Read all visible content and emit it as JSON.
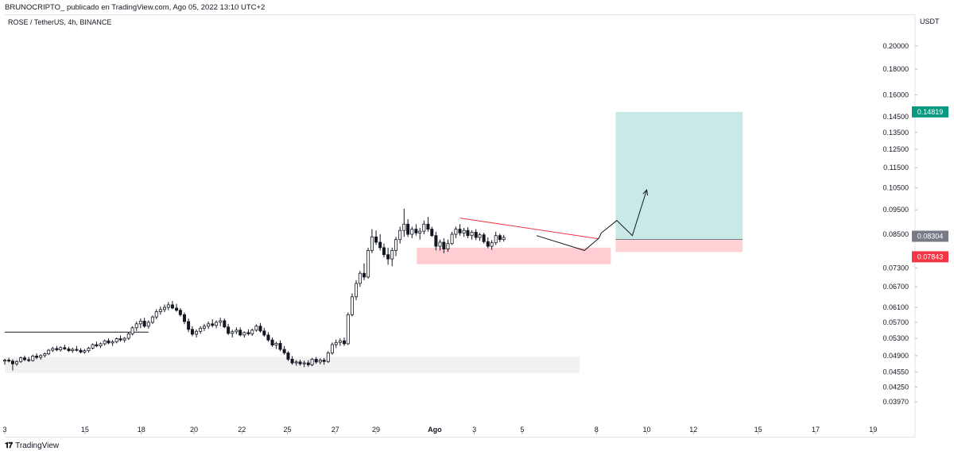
{
  "header": {
    "publisher_line": "BRUNOCRIPTO_ publicado en TradingView.com, Ago 05, 2022 13:10 UTC+2"
  },
  "chart_title": "ROSE / TetherUS, 4h, BINANCE",
  "currency": "USDT",
  "footer": {
    "brand": "TradingView",
    "logo": "tv-logo-icon"
  },
  "colors": {
    "up": "#131722",
    "down": "#131722",
    "up_fill": "#ffffff",
    "target_zone": "#b2dfdb",
    "stop_zone": "#ffcdd2",
    "demand_zone": "#f0f0f0",
    "price_tag": "#787b86",
    "target_tag": "#089981",
    "stop_tag": "#f23645",
    "trendline": "#f23645"
  },
  "chart_data": {
    "type": "candlestick",
    "y_axis": {
      "ticks": [
        "0.20000",
        "0.18000",
        "0.16000",
        "0.14500",
        "0.13500",
        "0.12500",
        "0.11500",
        "0.10500",
        "0.09500",
        "0.08500",
        "0.07300",
        "0.06700",
        "0.06100",
        "0.05700",
        "0.05300",
        "0.04900",
        "0.04550",
        "0.04250",
        "0.03970"
      ],
      "scale": "log",
      "range": [
        0.0375,
        0.23
      ]
    },
    "x_axis": {
      "ticks": [
        "3",
        "15",
        "18",
        "20",
        "22",
        "25",
        "27",
        "29",
        "Ago",
        "3",
        "5",
        "8",
        "10",
        "12",
        "15",
        "17",
        "19"
      ],
      "range_day_index": [
        0,
        38
      ]
    },
    "price_tags": [
      {
        "name": "target",
        "value": "0.14819",
        "price": 0.14819
      },
      {
        "name": "current",
        "value": "0.08304",
        "price": 0.08304
      },
      {
        "name": "stop",
        "value": "0.07843",
        "price": 0.07843
      }
    ],
    "candles": [
      [
        0.0,
        0.0478,
        0.0483,
        0.047,
        0.048
      ],
      [
        0.17,
        0.048,
        0.0485,
        0.0475,
        0.0478
      ],
      [
        0.33,
        0.0478,
        0.0482,
        0.0458,
        0.0472
      ],
      [
        0.5,
        0.0472,
        0.048,
        0.0468,
        0.0477
      ],
      [
        0.67,
        0.0477,
        0.0488,
        0.0474,
        0.0485
      ],
      [
        0.83,
        0.0485,
        0.049,
        0.0478,
        0.0481
      ],
      [
        1.0,
        0.0481,
        0.0487,
        0.0476,
        0.0479
      ],
      [
        1.17,
        0.0479,
        0.0492,
        0.0477,
        0.0489
      ],
      [
        1.33,
        0.0489,
        0.0495,
        0.0482,
        0.0486
      ],
      [
        1.5,
        0.0486,
        0.0493,
        0.0481,
        0.049
      ],
      [
        1.67,
        0.049,
        0.0497,
        0.0486,
        0.0494
      ],
      [
        1.83,
        0.0494,
        0.0505,
        0.0491,
        0.0502
      ],
      [
        2.0,
        0.0502,
        0.051,
        0.0498,
        0.0506
      ],
      [
        2.17,
        0.0506,
        0.0512,
        0.05,
        0.0503
      ],
      [
        2.33,
        0.0503,
        0.0511,
        0.0499,
        0.0508
      ],
      [
        2.5,
        0.0508,
        0.0515,
        0.0503,
        0.0505
      ],
      [
        2.67,
        0.0505,
        0.051,
        0.0498,
        0.0501
      ],
      [
        2.83,
        0.0501,
        0.0508,
        0.0496,
        0.0504
      ],
      [
        3.0,
        0.0504,
        0.0512,
        0.0499,
        0.0502
      ],
      [
        3.17,
        0.0502,
        0.0507,
        0.0495,
        0.0498
      ],
      [
        3.33,
        0.0498,
        0.0505,
        0.0494,
        0.0501
      ],
      [
        3.5,
        0.0501,
        0.051,
        0.0497,
        0.0507
      ],
      [
        3.67,
        0.0507,
        0.0518,
        0.0504,
        0.0515
      ],
      [
        3.83,
        0.0515,
        0.0522,
        0.0509,
        0.0512
      ],
      [
        4.0,
        0.0512,
        0.052,
        0.0507,
        0.0517
      ],
      [
        4.17,
        0.0517,
        0.0527,
        0.0513,
        0.0524
      ],
      [
        4.33,
        0.0524,
        0.053,
        0.0516,
        0.0519
      ],
      [
        4.5,
        0.0519,
        0.0526,
        0.0512,
        0.0522
      ],
      [
        4.67,
        0.0522,
        0.0532,
        0.0518,
        0.0529
      ],
      [
        4.83,
        0.0529,
        0.0537,
        0.0522,
        0.0526
      ],
      [
        5.0,
        0.0526,
        0.0533,
        0.052,
        0.053
      ],
      [
        5.17,
        0.053,
        0.0545,
        0.0526,
        0.0541
      ],
      [
        5.33,
        0.0541,
        0.056,
        0.0537,
        0.0556
      ],
      [
        5.5,
        0.0556,
        0.0572,
        0.0548,
        0.0566
      ],
      [
        5.67,
        0.0566,
        0.058,
        0.0555,
        0.0573
      ],
      [
        5.83,
        0.0573,
        0.0582,
        0.0556,
        0.056
      ],
      [
        6.0,
        0.056,
        0.0575,
        0.0554,
        0.057
      ],
      [
        6.17,
        0.057,
        0.0588,
        0.0566,
        0.0584
      ],
      [
        6.33,
        0.0584,
        0.0605,
        0.0578,
        0.0598
      ],
      [
        6.5,
        0.0598,
        0.0612,
        0.059,
        0.0604
      ],
      [
        6.67,
        0.0604,
        0.0618,
        0.0597,
        0.061
      ],
      [
        6.83,
        0.061,
        0.0625,
        0.0602,
        0.0617
      ],
      [
        7.0,
        0.0617,
        0.0628,
        0.0605,
        0.0608
      ],
      [
        7.17,
        0.0608,
        0.062,
        0.0598,
        0.0602
      ],
      [
        7.33,
        0.0602,
        0.0608,
        0.0585,
        0.059
      ],
      [
        7.5,
        0.059,
        0.0596,
        0.0565,
        0.0572
      ],
      [
        7.67,
        0.0572,
        0.058,
        0.0545,
        0.0552
      ],
      [
        7.83,
        0.0552,
        0.056,
        0.0535,
        0.054
      ],
      [
        8.0,
        0.054,
        0.0552,
        0.0532,
        0.0547
      ],
      [
        8.17,
        0.0547,
        0.056,
        0.0541,
        0.0555
      ],
      [
        8.33,
        0.0555,
        0.0566,
        0.0548,
        0.056
      ],
      [
        8.5,
        0.056,
        0.0572,
        0.0553,
        0.0566
      ],
      [
        8.67,
        0.0566,
        0.0578,
        0.0557,
        0.0562
      ],
      [
        8.83,
        0.0562,
        0.0575,
        0.0555,
        0.057
      ],
      [
        9.0,
        0.057,
        0.0582,
        0.056,
        0.0574
      ],
      [
        9.17,
        0.0574,
        0.058,
        0.0555,
        0.0558
      ],
      [
        9.33,
        0.0558,
        0.0566,
        0.0538,
        0.0542
      ],
      [
        9.5,
        0.0542,
        0.0551,
        0.0532,
        0.0546
      ],
      [
        9.67,
        0.0546,
        0.0557,
        0.054,
        0.055
      ],
      [
        9.83,
        0.055,
        0.0557,
        0.0535,
        0.0538
      ],
      [
        10.0,
        0.0538,
        0.0547,
        0.0532,
        0.0544
      ],
      [
        10.17,
        0.0544,
        0.0552,
        0.0537,
        0.0541
      ],
      [
        10.33,
        0.0541,
        0.0554,
        0.0536,
        0.055
      ],
      [
        10.5,
        0.055,
        0.0565,
        0.0546,
        0.056
      ],
      [
        10.67,
        0.056,
        0.0568,
        0.0544,
        0.0548
      ],
      [
        10.83,
        0.0548,
        0.0556,
        0.0534,
        0.0538
      ],
      [
        11.0,
        0.0538,
        0.0545,
        0.0522,
        0.0526
      ],
      [
        11.17,
        0.0526,
        0.0532,
        0.051,
        0.0514
      ],
      [
        11.33,
        0.0514,
        0.0522,
        0.0505,
        0.0518
      ],
      [
        11.5,
        0.0518,
        0.0525,
        0.05,
        0.0504
      ],
      [
        11.67,
        0.0504,
        0.0512,
        0.0492,
        0.0496
      ],
      [
        11.83,
        0.0496,
        0.05,
        0.0478,
        0.0482
      ],
      [
        12.0,
        0.0482,
        0.0489,
        0.047,
        0.0474
      ],
      [
        12.17,
        0.0474,
        0.048,
        0.0468,
        0.0476
      ],
      [
        12.33,
        0.0476,
        0.0481,
        0.0468,
        0.0472
      ],
      [
        12.5,
        0.0472,
        0.0479,
        0.0465,
        0.0474
      ],
      [
        12.67,
        0.0474,
        0.048,
        0.0466,
        0.047
      ],
      [
        12.83,
        0.047,
        0.0485,
        0.0467,
        0.0482
      ],
      [
        13.0,
        0.0482,
        0.0487,
        0.0472,
        0.0476
      ],
      [
        13.17,
        0.0476,
        0.0484,
        0.0471,
        0.048
      ],
      [
        13.33,
        0.048,
        0.0485,
        0.047,
        0.0477
      ],
      [
        13.5,
        0.0477,
        0.05,
        0.0474,
        0.0496
      ],
      [
        13.67,
        0.0496,
        0.052,
        0.0492,
        0.0515
      ],
      [
        13.83,
        0.0515,
        0.0527,
        0.0507,
        0.052
      ],
      [
        14.0,
        0.052,
        0.053,
        0.0512,
        0.0524
      ],
      [
        14.17,
        0.0524,
        0.0532,
        0.0512,
        0.0517
      ],
      [
        14.33,
        0.0517,
        0.0596,
        0.0514,
        0.059
      ],
      [
        14.5,
        0.059,
        0.065,
        0.0585,
        0.064
      ],
      [
        14.67,
        0.064,
        0.069,
        0.063,
        0.068
      ],
      [
        14.83,
        0.068,
        0.072,
        0.067,
        0.0712
      ],
      [
        15.0,
        0.0712,
        0.0745,
        0.069,
        0.07
      ],
      [
        15.17,
        0.07,
        0.08,
        0.0695,
        0.079
      ],
      [
        15.33,
        0.079,
        0.087,
        0.078,
        0.084
      ],
      [
        15.5,
        0.084,
        0.0865,
        0.081,
        0.082
      ],
      [
        15.67,
        0.082,
        0.085,
        0.079,
        0.08
      ],
      [
        15.83,
        0.08,
        0.0815,
        0.0765,
        0.0775
      ],
      [
        16.0,
        0.0775,
        0.08,
        0.074,
        0.076
      ],
      [
        16.17,
        0.076,
        0.08,
        0.0735,
        0.079
      ],
      [
        16.33,
        0.079,
        0.084,
        0.077,
        0.083
      ],
      [
        16.5,
        0.083,
        0.088,
        0.0815,
        0.0865
      ],
      [
        16.67,
        0.0865,
        0.0955,
        0.084,
        0.089
      ],
      [
        16.83,
        0.089,
        0.091,
        0.084,
        0.085
      ],
      [
        17.0,
        0.085,
        0.088,
        0.0835,
        0.087
      ],
      [
        17.17,
        0.087,
        0.089,
        0.0845,
        0.0855
      ],
      [
        17.33,
        0.0855,
        0.0875,
        0.083,
        0.0862
      ],
      [
        17.5,
        0.0862,
        0.0905,
        0.085,
        0.089
      ],
      [
        17.67,
        0.089,
        0.092,
        0.086,
        0.087
      ],
      [
        17.83,
        0.087,
        0.088,
        0.084,
        0.0845
      ],
      [
        18.0,
        0.0845,
        0.086,
        0.079,
        0.0805
      ],
      [
        18.17,
        0.0805,
        0.083,
        0.079,
        0.082
      ],
      [
        18.33,
        0.082,
        0.0835,
        0.078,
        0.0795
      ],
      [
        18.5,
        0.0795,
        0.083,
        0.0785,
        0.0815
      ],
      [
        18.67,
        0.0815,
        0.086,
        0.081,
        0.085
      ],
      [
        18.83,
        0.085,
        0.088,
        0.0835,
        0.087
      ],
      [
        19.0,
        0.087,
        0.089,
        0.0845,
        0.0855
      ],
      [
        19.17,
        0.0855,
        0.0875,
        0.084,
        0.0865
      ],
      [
        19.33,
        0.0865,
        0.0878,
        0.0835,
        0.0845
      ],
      [
        19.5,
        0.0845,
        0.0865,
        0.083,
        0.0858
      ],
      [
        19.67,
        0.0858,
        0.087,
        0.0828,
        0.0838
      ],
      [
        19.83,
        0.0838,
        0.0855,
        0.0825,
        0.0848
      ],
      [
        20.0,
        0.0848,
        0.0856,
        0.0815,
        0.0822
      ],
      [
        20.17,
        0.0822,
        0.0838,
        0.0798,
        0.0805
      ],
      [
        20.33,
        0.0805,
        0.0828,
        0.0792,
        0.0818
      ],
      [
        20.5,
        0.0818,
        0.086,
        0.081,
        0.0845
      ],
      [
        20.67,
        0.0845,
        0.0852,
        0.082,
        0.083
      ],
      [
        20.83,
        0.083,
        0.0848,
        0.0822,
        0.0838
      ]
    ],
    "shapes": [
      {
        "name": "demand-zone",
        "x0": 0.0,
        "x1": 24.0,
        "p_low": 0.0453,
        "p_high": 0.0487
      },
      {
        "name": "consolidation-stop-zone",
        "x0": 17.2,
        "x1": 25.3,
        "p_low": 0.0742,
        "p_high": 0.08
      },
      {
        "name": "target-zone",
        "x0": 25.5,
        "x1": 30.8,
        "p_low": 0.08304,
        "p_high": 0.14819
      },
      {
        "name": "stop-zone",
        "x0": 25.5,
        "x1": 30.8,
        "p_low": 0.07843,
        "p_high": 0.08304
      }
    ],
    "lines": [
      {
        "name": "resistance-line",
        "points": [
          [
            0.0,
            0.0545
          ],
          [
            6.0,
            0.0545
          ]
        ],
        "color": "#131722"
      },
      {
        "name": "descending-trendline",
        "points": [
          [
            19.0,
            0.0915
          ],
          [
            24.8,
            0.0833
          ]
        ],
        "color": "#f23645"
      },
      {
        "name": "entry-level",
        "points": [
          [
            25.5,
            0.08304
          ],
          [
            30.8,
            0.08304
          ]
        ],
        "color": "#787b86"
      },
      {
        "name": "projection-path",
        "points": [
          [
            22.2,
            0.0845
          ],
          [
            24.2,
            0.079
          ],
          [
            24.8,
            0.0835
          ],
          [
            24.9,
            0.0855
          ],
          [
            25.55,
            0.0905
          ],
          [
            26.2,
            0.0845
          ],
          [
            26.8,
            0.104
          ]
        ],
        "color": "#131722",
        "arrow": true
      }
    ]
  }
}
